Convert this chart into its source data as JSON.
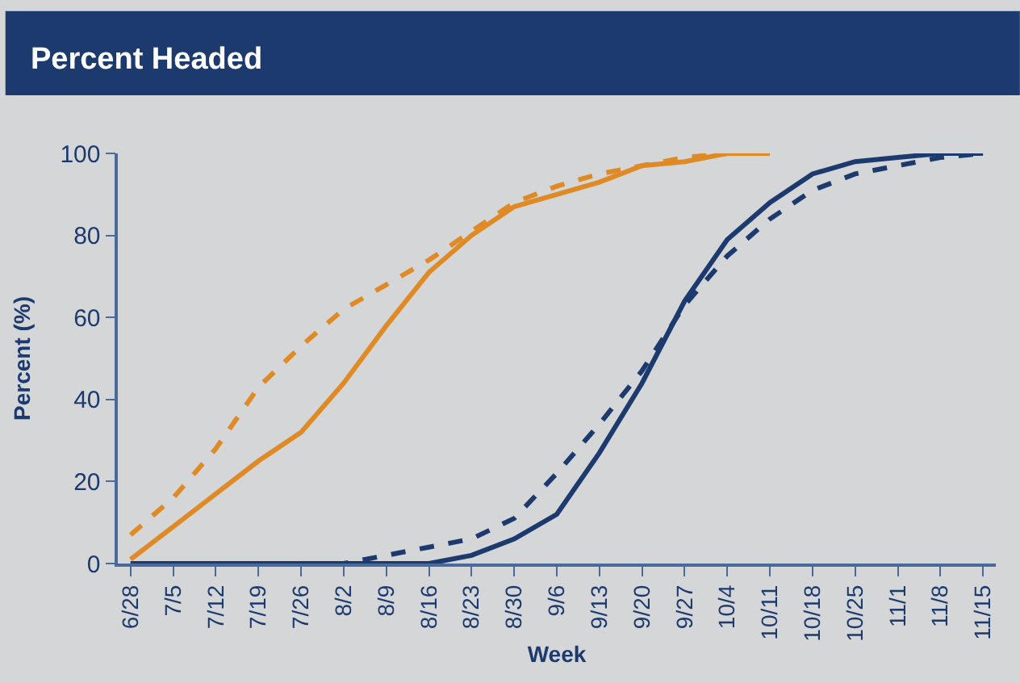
{
  "chart_data": {
    "type": "line",
    "title": "Percent Headed",
    "xlabel": "Week",
    "ylabel": "Percent (%)",
    "categories": [
      "6/28",
      "7/5",
      "7/12",
      "7/19",
      "7/26",
      "8/2",
      "8/9",
      "8/16",
      "8/23",
      "8/30",
      "9/6",
      "9/13",
      "9/20",
      "9/27",
      "10/4",
      "10/11",
      "10/18",
      "10/25",
      "11/1",
      "11/8",
      "11/15"
    ],
    "series": [
      {
        "color": "#e08a26",
        "line_style": "solid",
        "values": [
          1,
          9,
          17,
          25,
          32,
          44,
          58,
          71,
          80,
          87,
          90,
          93,
          97,
          98,
          100,
          100,
          null,
          null,
          null,
          null,
          null
        ]
      },
      {
        "color": "#e08a26",
        "line_style": "dashed",
        "values": [
          7,
          16,
          28,
          43,
          53,
          62,
          68,
          74,
          81,
          88,
          92,
          95,
          97,
          99,
          100,
          100,
          null,
          null,
          null,
          null,
          null
        ]
      },
      {
        "color": "#1c3a6e",
        "line_style": "solid",
        "values": [
          0,
          0,
          0,
          0,
          0,
          0,
          0,
          0,
          2,
          6,
          12,
          27,
          44,
          64,
          79,
          88,
          95,
          98,
          99,
          100,
          100
        ]
      },
      {
        "color": "#1c3a6e",
        "line_style": "dashed",
        "values": [
          0,
          0,
          0,
          0,
          0,
          0,
          2,
          4,
          6,
          11,
          22,
          34,
          47,
          63,
          75,
          84,
          91,
          95,
          97,
          99,
          100
        ]
      }
    ],
    "ylim": [
      0,
      100
    ],
    "yticks": [
      0,
      20,
      40,
      60,
      80,
      100
    ],
    "grid": false,
    "marker": "none"
  }
}
